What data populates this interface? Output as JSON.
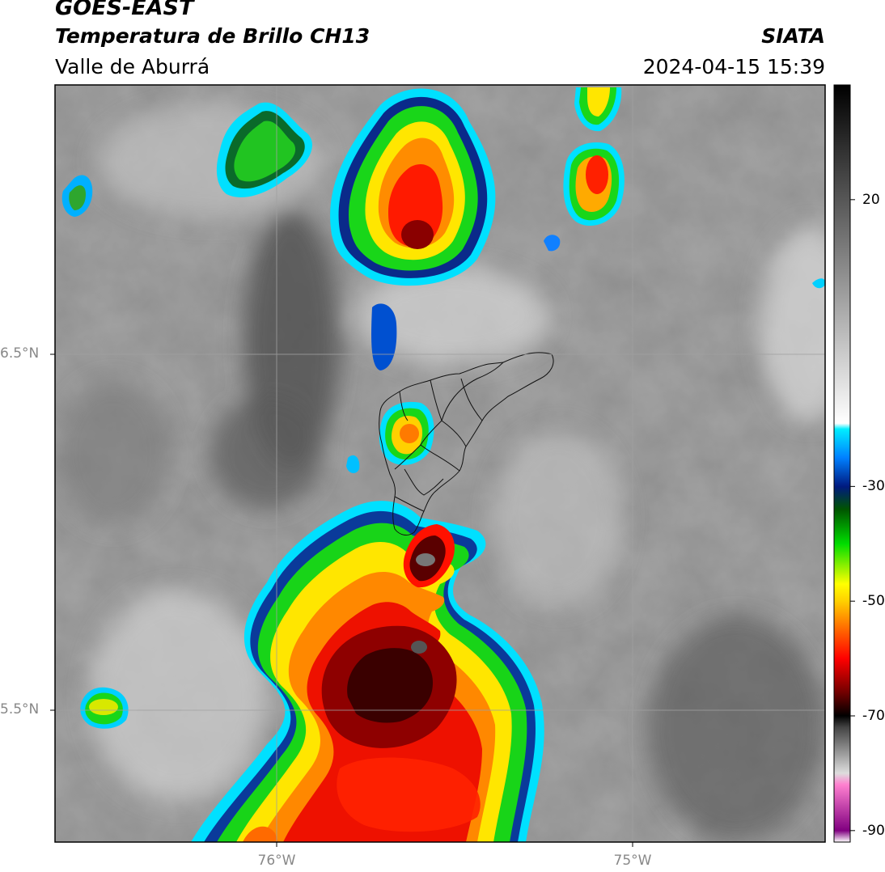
{
  "header": {
    "satellite": "GOES-EAST",
    "product": "Temperatura de Brillo CH13",
    "organization": "SIATA",
    "region": "Valle de Aburrá",
    "timestamp": "2024-04-15 15:39"
  },
  "map": {
    "lat_ticks": [
      {
        "value": 6.5,
        "label": "6.5°N"
      },
      {
        "value": 5.5,
        "label": "5.5°N"
      }
    ],
    "lon_ticks": [
      {
        "value": -76.0,
        "label": "76°W"
      },
      {
        "value": -75.0,
        "label": "75°W"
      }
    ],
    "gridlines": true,
    "features": [
      "cloud-top brightness temperature field",
      "municipal boundaries of Valle de Aburrá"
    ]
  },
  "colorbar": {
    "orientation": "vertical",
    "placement": "right",
    "range": [
      -92,
      40
    ],
    "ticks": [
      {
        "value": 20,
        "label": "20"
      },
      {
        "value": -30,
        "label": "-30"
      },
      {
        "value": -50,
        "label": "-50"
      },
      {
        "value": -70,
        "label": "-70"
      },
      {
        "value": -90,
        "label": "-90"
      }
    ],
    "stops": [
      {
        "value": -92,
        "color": "#ffffff"
      },
      {
        "value": -90,
        "color": "#800080"
      },
      {
        "value": -82,
        "color": "#ff80d0"
      },
      {
        "value": -80,
        "color": "#dddddd"
      },
      {
        "value": -72,
        "color": "#444444"
      },
      {
        "value": -70,
        "color": "#000000"
      },
      {
        "value": -66,
        "color": "#700000"
      },
      {
        "value": -60,
        "color": "#ff0000"
      },
      {
        "value": -55,
        "color": "#ff6600"
      },
      {
        "value": -50,
        "color": "#ffd000"
      },
      {
        "value": -47,
        "color": "#ffff00"
      },
      {
        "value": -40,
        "color": "#00dd00"
      },
      {
        "value": -34,
        "color": "#005500"
      },
      {
        "value": -30,
        "color": "#001a80"
      },
      {
        "value": -25,
        "color": "#0080ff"
      },
      {
        "value": -20,
        "color": "#00eeff"
      },
      {
        "value": -19,
        "color": "#ffffff"
      },
      {
        "value": 40,
        "color": "#000000"
      }
    ]
  }
}
